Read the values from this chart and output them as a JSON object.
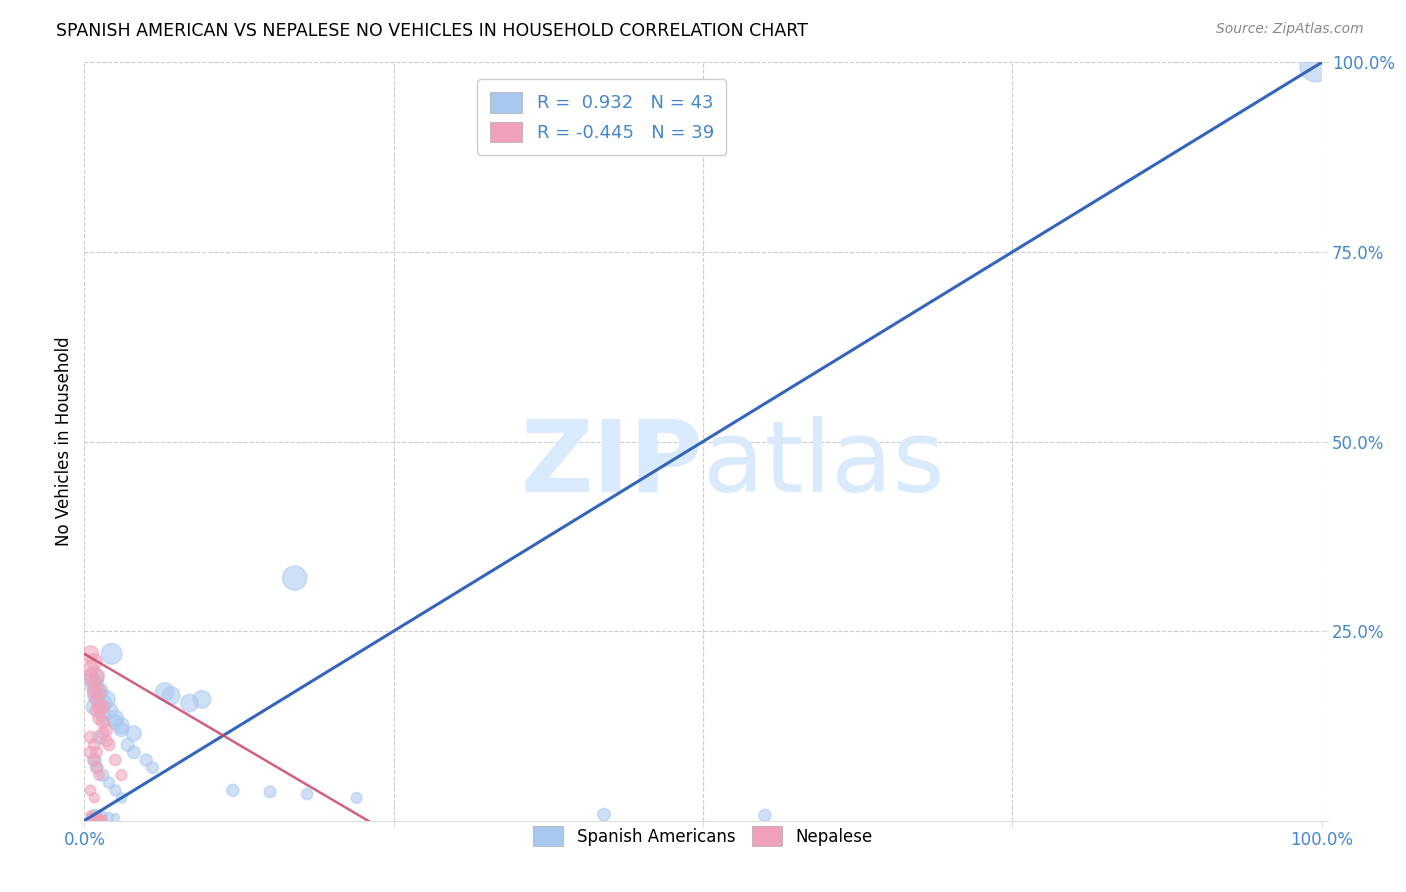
{
  "title": "SPANISH AMERICAN VS NEPALESE NO VEHICLES IN HOUSEHOLD CORRELATION CHART",
  "source": "Source: ZipAtlas.com",
  "ylabel": "No Vehicles in Household",
  "xlim": [
    0,
    1.0
  ],
  "ylim": [
    0,
    1.0
  ],
  "blue_R": 0.932,
  "blue_N": 43,
  "pink_R": -0.445,
  "pink_N": 39,
  "blue_color": "#A8C8F0",
  "pink_color": "#F0A0B8",
  "line_color": "#3366BB",
  "pink_line_color": "#CC4466",
  "watermark_color": "#D8EAFB",
  "grid_color": "#CCCCCC",
  "tick_color": "#4488CC",
  "blue_scatter_x": [
    0.008,
    0.012,
    0.018,
    0.022,
    0.008,
    0.015,
    0.025,
    0.03,
    0.012,
    0.035,
    0.04,
    0.05,
    0.055,
    0.008,
    0.01,
    0.015,
    0.02,
    0.025,
    0.03,
    0.04,
    0.008,
    0.01,
    0.015,
    0.02,
    0.025,
    0.03,
    0.12,
    0.15,
    0.18,
    0.22,
    0.095,
    0.085,
    0.065,
    0.07,
    0.17,
    0.42,
    0.55,
    0.995,
    0.008,
    0.01,
    0.015,
    0.02,
    0.025
  ],
  "blue_scatter_y": [
    0.19,
    0.17,
    0.16,
    0.22,
    0.15,
    0.14,
    0.13,
    0.12,
    0.11,
    0.1,
    0.09,
    0.08,
    0.07,
    0.18,
    0.165,
    0.155,
    0.145,
    0.135,
    0.125,
    0.115,
    0.08,
    0.07,
    0.06,
    0.05,
    0.04,
    0.03,
    0.04,
    0.038,
    0.035,
    0.03,
    0.16,
    0.155,
    0.17,
    0.165,
    0.32,
    0.008,
    0.007,
    0.995,
    0.008,
    0.007,
    0.006,
    0.005,
    0.004
  ],
  "blue_scatter_size": [
    200,
    160,
    150,
    220,
    130,
    120,
    110,
    100,
    90,
    85,
    80,
    75,
    70,
    175,
    165,
    155,
    145,
    135,
    125,
    115,
    90,
    80,
    70,
    65,
    60,
    55,
    75,
    70,
    65,
    60,
    160,
    155,
    170,
    165,
    300,
    80,
    75,
    500,
    55,
    50,
    45,
    40,
    35
  ],
  "pink_scatter_x": [
    0.005,
    0.008,
    0.01,
    0.012,
    0.015,
    0.018,
    0.02,
    0.025,
    0.03,
    0.005,
    0.008,
    0.01,
    0.012,
    0.015,
    0.018,
    0.005,
    0.008,
    0.01,
    0.012,
    0.015,
    0.005,
    0.008,
    0.01,
    0.012,
    0.005,
    0.008,
    0.01,
    0.005,
    0.008,
    0.005,
    0.008,
    0.01,
    0.012,
    0.015,
    0.005,
    0.008,
    0.01,
    0.012,
    0.015
  ],
  "pink_scatter_y": [
    0.2,
    0.18,
    0.16,
    0.15,
    0.13,
    0.12,
    0.1,
    0.08,
    0.06,
    0.19,
    0.17,
    0.145,
    0.135,
    0.115,
    0.105,
    0.22,
    0.21,
    0.19,
    0.17,
    0.15,
    0.09,
    0.08,
    0.07,
    0.06,
    0.11,
    0.1,
    0.09,
    0.04,
    0.03,
    0.005,
    0.004,
    0.003,
    0.003,
    0.002,
    0.007,
    0.006,
    0.005,
    0.004,
    0.003
  ],
  "pink_scatter_size": [
    120,
    100,
    90,
    85,
    80,
    75,
    70,
    65,
    60,
    115,
    95,
    85,
    80,
    75,
    70,
    130,
    120,
    110,
    100,
    90,
    70,
    65,
    60,
    55,
    75,
    70,
    65,
    55,
    50,
    35,
    30,
    30,
    30,
    25,
    40,
    35,
    30,
    28,
    25
  ],
  "blue_line_x0": 0.0,
  "blue_line_y0": 0.0,
  "blue_line_x1": 1.0,
  "blue_line_y1": 1.0,
  "pink_line_x0": 0.0,
  "pink_line_y0": 0.22,
  "pink_line_x1": 0.25,
  "pink_line_y1": -0.02
}
